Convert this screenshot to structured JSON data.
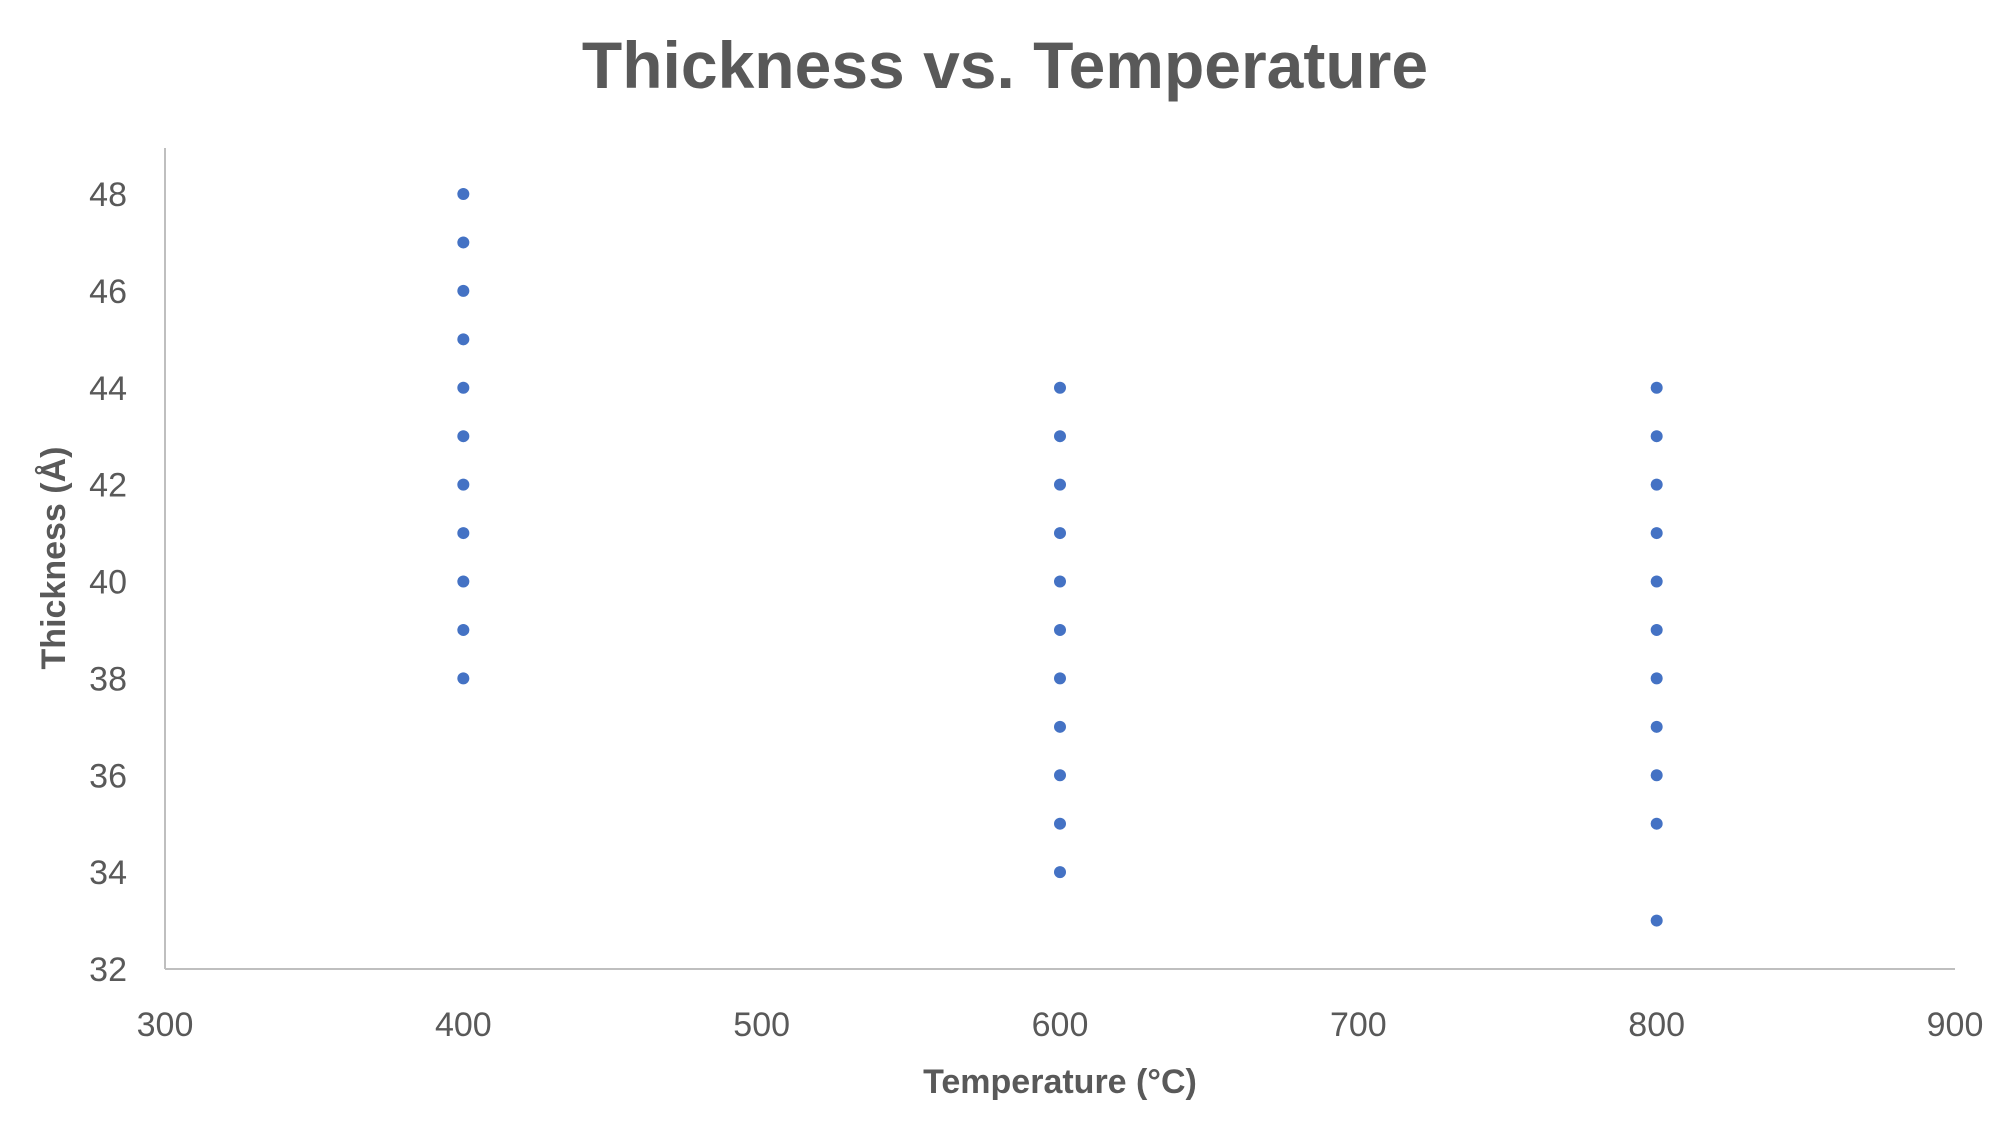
{
  "chart_data": {
    "type": "scatter",
    "title": "Thickness vs. Temperature",
    "xlabel": "Temperature (°C)",
    "ylabel": "Thickness (Å)",
    "xlim": [
      300,
      900
    ],
    "ylim": [
      32,
      49
    ],
    "x_ticks": [
      "300",
      "400",
      "500",
      "600",
      "700",
      "800",
      "900"
    ],
    "y_ticks": [
      "32",
      "34",
      "36",
      "38",
      "40",
      "42",
      "44",
      "46",
      "48"
    ],
    "grid": false,
    "legend": "none",
    "point_color": "#4472c4",
    "series": [
      {
        "points": [
          [
            400,
            48
          ],
          [
            400,
            47
          ],
          [
            400,
            46
          ],
          [
            400,
            45
          ],
          [
            400,
            44
          ],
          [
            400,
            43
          ],
          [
            400,
            42
          ],
          [
            400,
            41
          ],
          [
            400,
            40
          ],
          [
            400,
            39
          ],
          [
            400,
            38
          ],
          [
            600,
            44
          ],
          [
            600,
            43
          ],
          [
            600,
            42
          ],
          [
            600,
            41
          ],
          [
            600,
            40
          ],
          [
            600,
            39
          ],
          [
            600,
            38
          ],
          [
            600,
            37
          ],
          [
            600,
            36
          ],
          [
            600,
            35
          ],
          [
            600,
            34
          ],
          [
            800,
            44
          ],
          [
            800,
            43
          ],
          [
            800,
            42
          ],
          [
            800,
            41
          ],
          [
            800,
            40
          ],
          [
            800,
            39
          ],
          [
            800,
            38
          ],
          [
            800,
            37
          ],
          [
            800,
            36
          ],
          [
            800,
            35
          ],
          [
            800,
            33
          ]
        ]
      }
    ]
  }
}
